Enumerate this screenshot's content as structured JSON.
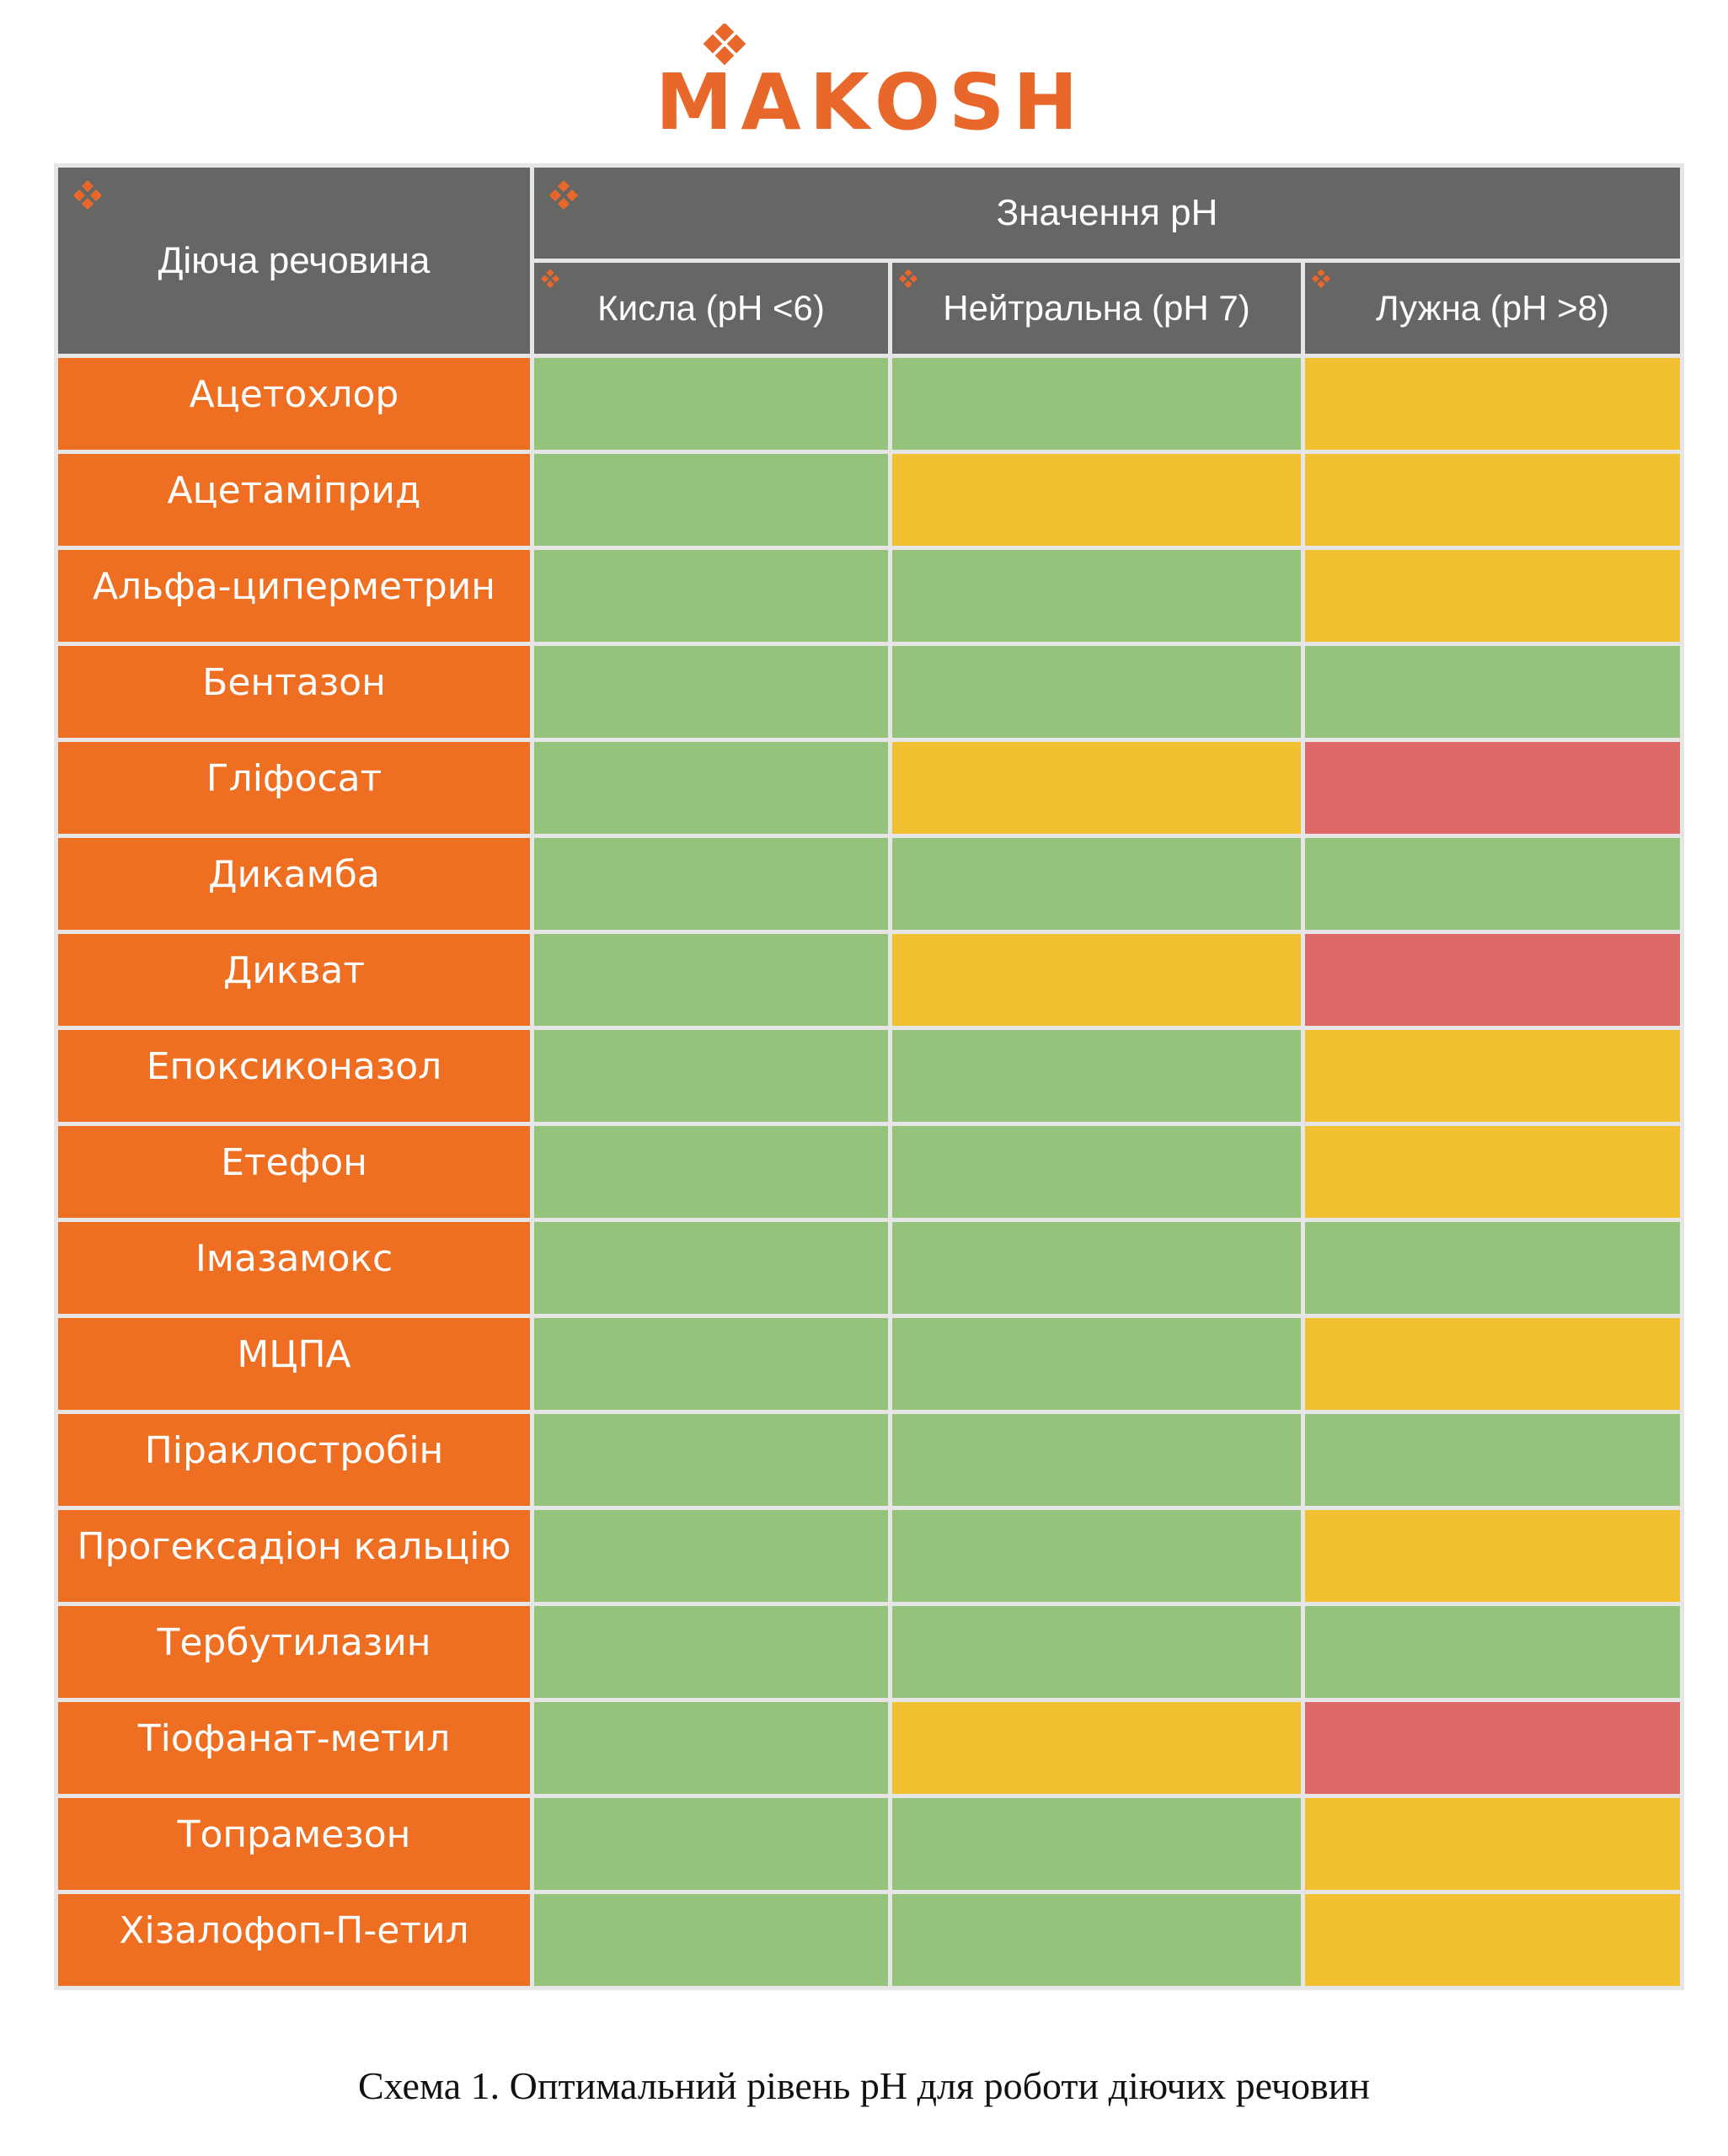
{
  "logo": {
    "text": "MAKOSH"
  },
  "colors": {
    "accent": "#ee6f21",
    "header": "#666765",
    "green": "#96c37c",
    "yellow": "#f0c030",
    "red": "#de6767"
  },
  "table": {
    "header": {
      "substance": "Діюча речовина",
      "ph_values": "Значення рН",
      "acidic": "Кисла (рН <6)",
      "neutral": "Нейтральна (рН 7)",
      "alkaline": "Лужна (рН >8)"
    },
    "rows": [
      {
        "name": "Ацетохлор",
        "levels": [
          "green",
          "green",
          "yellow"
        ]
      },
      {
        "name": "Ацетаміприд",
        "levels": [
          "green",
          "yellow",
          "yellow"
        ]
      },
      {
        "name": "Альфа-циперметрин",
        "levels": [
          "green",
          "green",
          "yellow"
        ]
      },
      {
        "name": "Бентазон",
        "levels": [
          "green",
          "green",
          "green"
        ]
      },
      {
        "name": "Гліфосат",
        "levels": [
          "green",
          "yellow",
          "red"
        ]
      },
      {
        "name": "Дикамба",
        "levels": [
          "green",
          "green",
          "green"
        ]
      },
      {
        "name": "Дикват",
        "levels": [
          "green",
          "yellow",
          "red"
        ]
      },
      {
        "name": "Епоксиконазол",
        "levels": [
          "green",
          "green",
          "yellow"
        ]
      },
      {
        "name": "Етефон",
        "levels": [
          "green",
          "green",
          "yellow"
        ]
      },
      {
        "name": "Імазамокс",
        "levels": [
          "green",
          "green",
          "green"
        ]
      },
      {
        "name": "МЦПА",
        "levels": [
          "green",
          "green",
          "yellow"
        ]
      },
      {
        "name": "Піраклостробін",
        "levels": [
          "green",
          "green",
          "green"
        ]
      },
      {
        "name": "Прогексадіон кальцію",
        "levels": [
          "green",
          "green",
          "yellow"
        ]
      },
      {
        "name": "Тербутилазин",
        "levels": [
          "green",
          "green",
          "green"
        ]
      },
      {
        "name": "Тіофанат-метил",
        "levels": [
          "green",
          "yellow",
          "red"
        ]
      },
      {
        "name": "Топрамезон",
        "levels": [
          "green",
          "green",
          "yellow"
        ]
      },
      {
        "name": "Хізалофоп-П-етил",
        "levels": [
          "green",
          "green",
          "yellow"
        ]
      }
    ]
  },
  "caption": "Схема 1. Оптимальний рівень рН для роботи діючих речовин"
}
